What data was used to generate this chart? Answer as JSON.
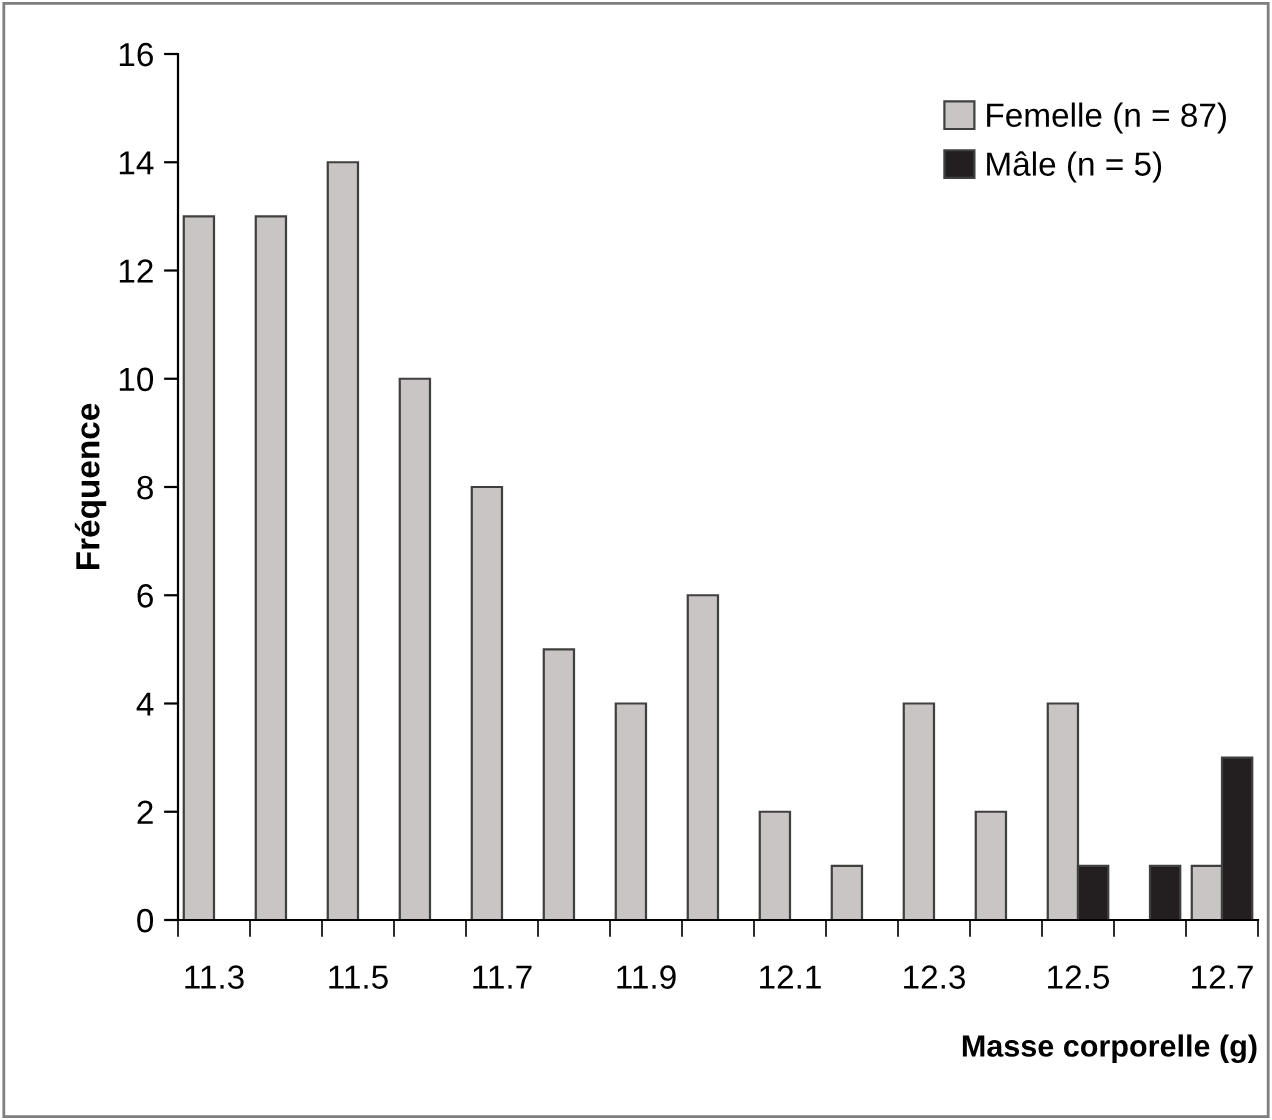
{
  "chart_data": {
    "type": "bar",
    "xlabel": "Masse corporelle (g)",
    "ylabel": "Fréquence",
    "categories": [
      "11.3",
      null,
      "11.5",
      null,
      "11.7",
      null,
      "11.9",
      null,
      "12.1",
      null,
      "12.3",
      null,
      "12.5",
      null,
      "12.7"
    ],
    "series": [
      {
        "name": "Femelle (n = 87)",
        "color": "#c9c5c4",
        "values": [
          13,
          13,
          14,
          10,
          8,
          5,
          4,
          6,
          2,
          1,
          4,
          2,
          4,
          null,
          1
        ]
      },
      {
        "name": "Mâle (n = 5)",
        "color": "#231f20",
        "values": [
          null,
          null,
          null,
          null,
          null,
          null,
          null,
          null,
          null,
          null,
          null,
          null,
          1,
          1,
          3
        ]
      }
    ],
    "ylim": [
      0,
      16
    ],
    "yticks": [
      0,
      2,
      4,
      6,
      8,
      10,
      12,
      14,
      16
    ],
    "grid": false,
    "legend": "top right"
  }
}
